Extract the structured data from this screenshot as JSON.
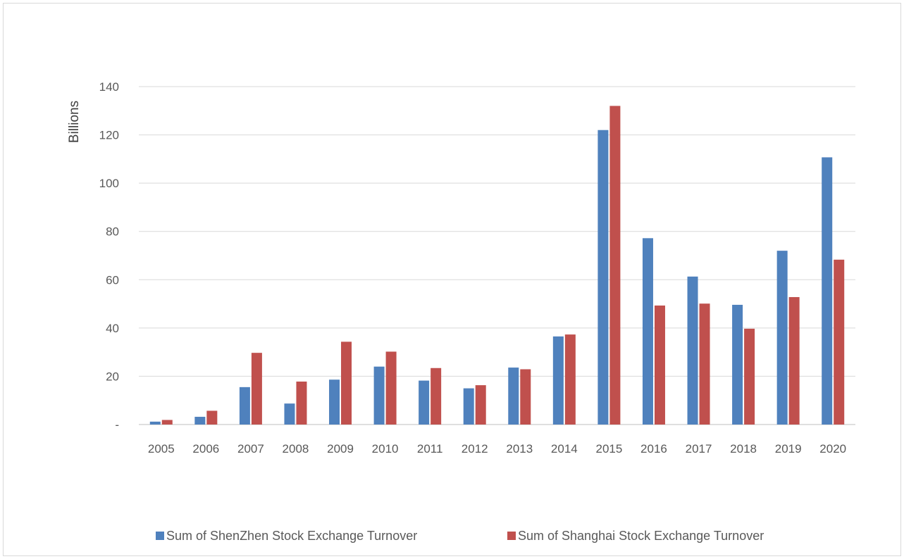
{
  "chart_data": {
    "type": "bar",
    "title": "",
    "xlabel": "",
    "ylabel": "Billions",
    "ylim": [
      0,
      140
    ],
    "yticks": [
      0,
      20,
      40,
      60,
      80,
      100,
      120,
      140
    ],
    "ytick_labels": [
      "-",
      "20",
      "40",
      "60",
      "80",
      "100",
      "120",
      "140"
    ],
    "grid": true,
    "legend_position": "bottom",
    "categories": [
      "2005",
      "2006",
      "2007",
      "2008",
      "2009",
      "2010",
      "2011",
      "2012",
      "2013",
      "2014",
      "2015",
      "2016",
      "2017",
      "2018",
      "2019",
      "2020"
    ],
    "series": [
      {
        "name": "Sum of ShenZhen Stock Exchange Turnover",
        "color": "#4f81bd",
        "values": [
          1.2,
          3.2,
          15.5,
          8.7,
          18.6,
          24.0,
          18.2,
          15.0,
          23.6,
          36.5,
          122.0,
          77.2,
          61.3,
          49.6,
          72.0,
          110.7
        ]
      },
      {
        "name": "Sum of Shanghai Stock Exchange Turnover",
        "color": "#c0504d",
        "values": [
          1.9,
          5.7,
          29.7,
          17.8,
          34.3,
          30.2,
          23.4,
          16.3,
          22.9,
          37.3,
          132.0,
          49.3,
          50.1,
          39.7,
          52.8,
          68.3
        ]
      }
    ]
  }
}
